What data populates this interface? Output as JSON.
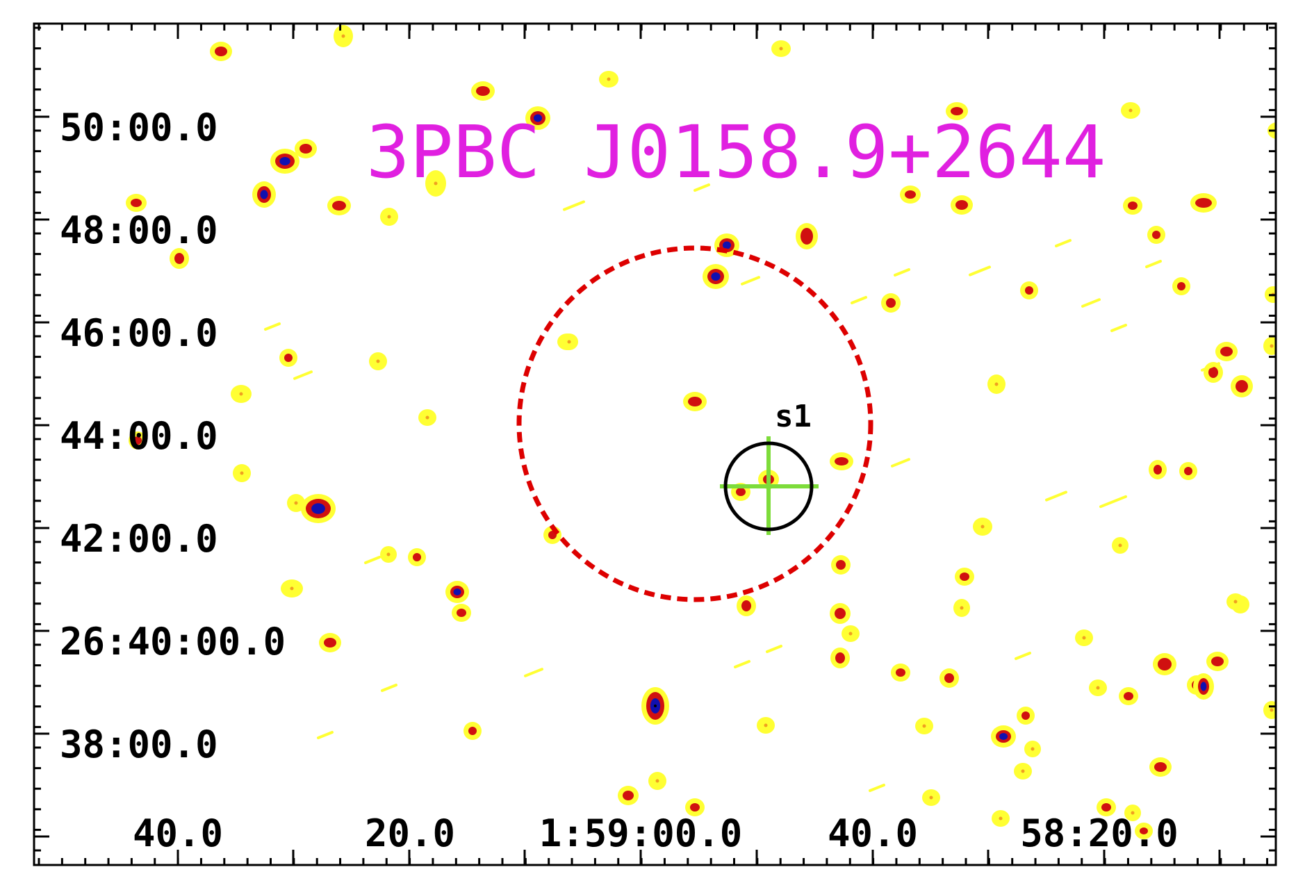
{
  "title": "3PBC J0158.9+2644",
  "source_label": "s1",
  "dec_labels": [
    "50:00.0",
    "48:00.0",
    "46:00.0",
    "44:00.0",
    "42:00.0",
    "26:40:00.0",
    "38:00.0"
  ],
  "ra_labels": [
    "40.0",
    "20.0",
    "1:59:00.0",
    "40.0",
    "58:20.0"
  ],
  "colors": {
    "title": "#e020e0",
    "error_circle": "#dd0000",
    "source_circle": "#000000",
    "crosshair": "#7ddc3a",
    "frame": "#000000",
    "background": "#ffffff",
    "halo": "#ffff33",
    "core": "#d01010",
    "peak": "#1010b0"
  }
}
